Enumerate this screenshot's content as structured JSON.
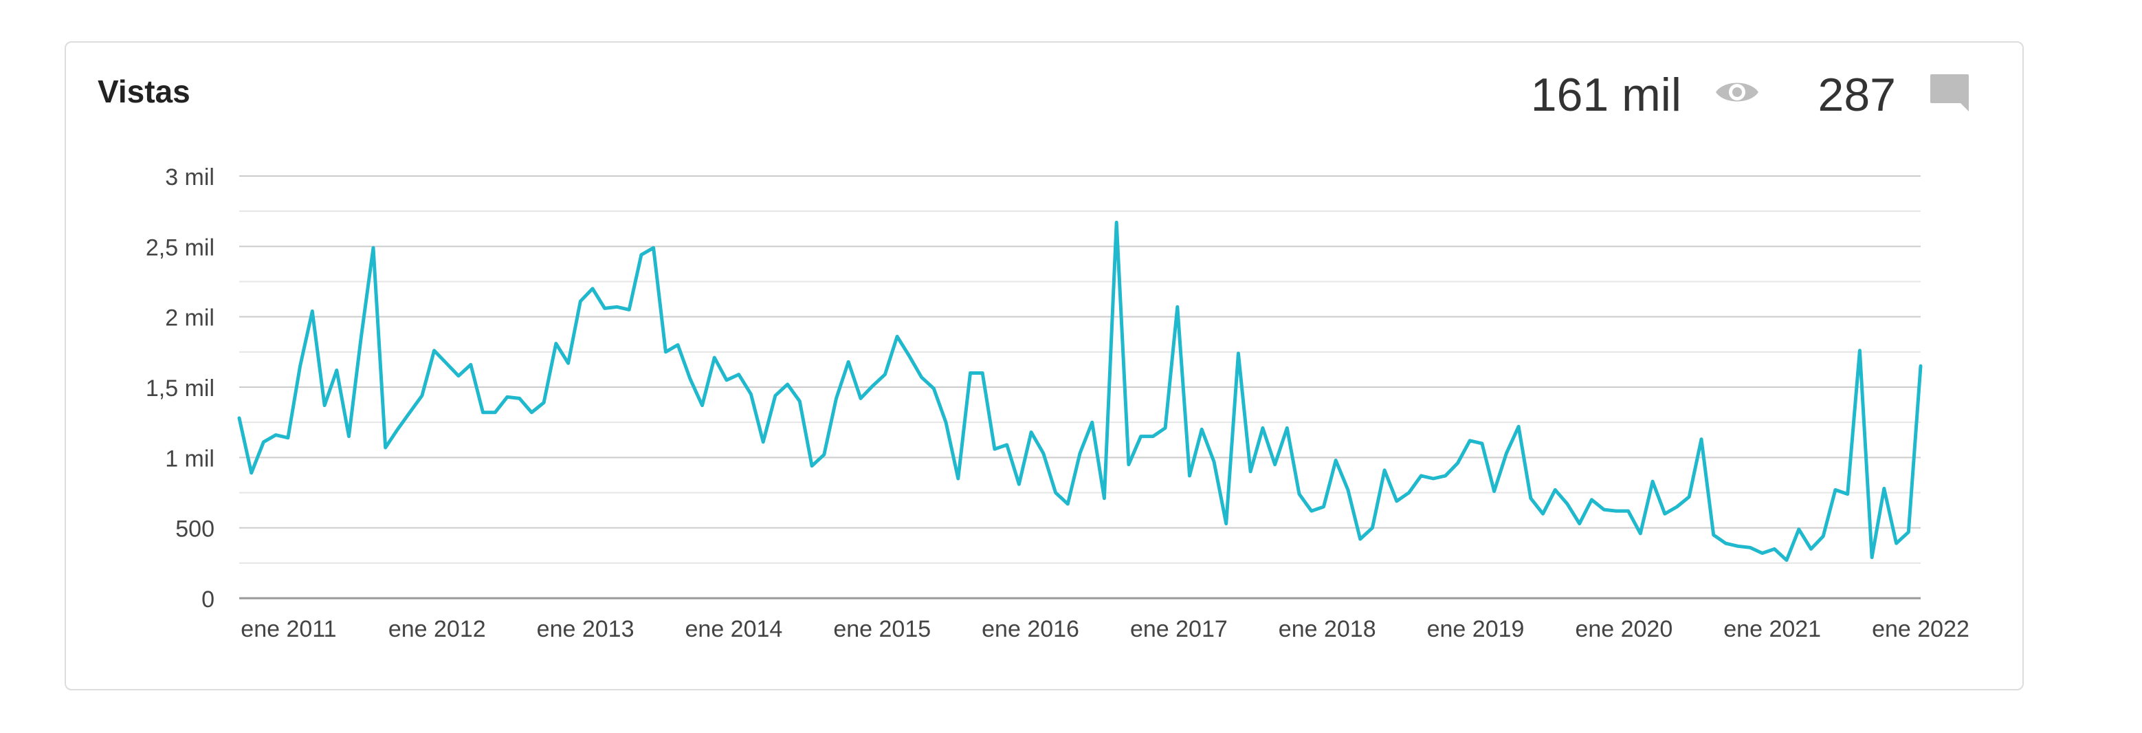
{
  "card": {
    "title": "Vistas",
    "views_total": "161 mil",
    "comments_total": "287",
    "views_icon": "eye-icon",
    "comments_icon": "comment-icon"
  },
  "colors": {
    "line": "#1fb8cc",
    "icon": "#bdbdbd",
    "grid": "#cccccc",
    "grid_minor": "#e6e6e6",
    "axis": "#999999",
    "text": "#444444"
  },
  "chart_data": {
    "type": "line",
    "ylim": [
      0,
      3000
    ],
    "yticks": [
      0,
      500,
      1000,
      1500,
      2000,
      2500,
      3000
    ],
    "ytick_labels": [
      "0",
      "500",
      "1 mil",
      "1,5 mil",
      "2 mil",
      "2,5 mil",
      "3 mil"
    ],
    "x_start": "2010-09",
    "x_end": "2022-01",
    "xtick_labels": [
      "ene 2011",
      "ene 2012",
      "ene 2013",
      "ene 2014",
      "ene 2015",
      "ene 2016",
      "ene 2017",
      "ene 2018",
      "ene 2019",
      "ene 2020",
      "ene 2021",
      "ene 2022"
    ],
    "grid": true,
    "series": [
      {
        "values": [
          1280,
          890,
          1110,
          1160,
          1140,
          1650,
          2040,
          1370,
          1620,
          1150,
          1850,
          2490,
          1070,
          1200,
          1320,
          1440,
          1760,
          1670,
          1580,
          1660,
          1320,
          1320,
          1430,
          1420,
          1320,
          1390,
          1810,
          1670,
          2110,
          2200,
          2060,
          2070,
          2050,
          2440,
          2490,
          1750,
          1800,
          1560,
          1370,
          1710,
          1550,
          1590,
          1450,
          1110,
          1440,
          1520,
          1400,
          940,
          1020,
          1420,
          1680,
          1420,
          1510,
          1590,
          1860,
          1720,
          1570,
          1490,
          1250,
          850,
          1600,
          1600,
          1060,
          1090,
          810,
          1180,
          1030,
          750,
          670,
          1030,
          1250,
          710,
          2670,
          950,
          1150,
          1150,
          1210,
          2070,
          870,
          1200,
          970,
          530,
          1740,
          900,
          1210,
          950,
          1210,
          740,
          620,
          650,
          980,
          770,
          420,
          500,
          910,
          690,
          750,
          870,
          850,
          870,
          960,
          1120,
          1100,
          760,
          1030,
          1220,
          710,
          600,
          770,
          670,
          530,
          700,
          630,
          620,
          620,
          460,
          830,
          600,
          650,
          720,
          1130,
          450,
          390,
          370,
          360,
          320,
          350,
          270,
          490,
          350,
          440,
          770,
          740,
          1760,
          290,
          780,
          390,
          470,
          1650
        ]
      }
    ]
  }
}
